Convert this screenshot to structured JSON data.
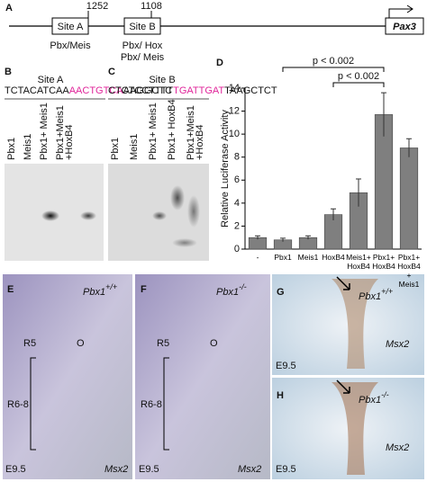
{
  "panel_a": {
    "label": "A",
    "gene": "Pax3",
    "sites": [
      {
        "name": "Site A",
        "position": 1252,
        "motif": [
          "Pbx/Meis"
        ]
      },
      {
        "name": "Site B",
        "position": 1108,
        "motif": [
          "Pbx/ Hox",
          "Pbx/ Meis"
        ]
      }
    ]
  },
  "panel_b": {
    "label": "B",
    "site": "Site A",
    "sequence": {
      "prefix": "TCTACATCAA",
      "site": "AACTGTCA",
      "suffix": "AAGGCTC"
    },
    "lanes": [
      [
        "Pbx1"
      ],
      [
        "Meis1"
      ],
      [
        "Pbx1+ Meis1"
      ],
      [
        "Pbx1+Meis1",
        "+HoxB4"
      ]
    ]
  },
  "panel_c": {
    "label": "C",
    "site": "Site B",
    "sequence": {
      "prefix": "CTCTCCTTTT",
      "site": "TGATTGAT",
      "suffix": "TAAGCTCT"
    },
    "lanes": [
      [
        "Pbx1"
      ],
      [
        "Meis1"
      ],
      [
        "Pbx1+ Meis1"
      ],
      [
        "Pbx1+ HoxB4"
      ],
      [
        "Pbx1+Meis1",
        "+HoxB4"
      ]
    ]
  },
  "chart_data": {
    "label": "D",
    "type": "bar",
    "y_label": "Relative Luciferase Activity",
    "categories": [
      "-",
      "Pbx1",
      "Meis1",
      "HoxB4",
      "Meis1+ HoxB4",
      "Pbx1+ HoxB4",
      "Pbx1+ HoxB4 + Meis1"
    ],
    "values": [
      1.0,
      0.8,
      1.0,
      3.0,
      4.9,
      11.7,
      8.8
    ],
    "errors": [
      0.15,
      0.15,
      0.15,
      0.5,
      1.2,
      1.9,
      0.8
    ],
    "color": "#7f7f7f",
    "ylim": [
      0,
      14
    ],
    "yticks": [
      0,
      2,
      4,
      6,
      8,
      10,
      12,
      14
    ],
    "annotations": [
      "p < 0.002",
      "p < 0.002"
    ]
  },
  "panel_e": {
    "label": "E",
    "gene": "Pbx1",
    "genotype": "+/+",
    "regions": [
      "R5",
      "O",
      "R6-8"
    ],
    "stage": "E9.5",
    "probe": "Msx2"
  },
  "panel_f": {
    "label": "F",
    "gene": "Pbx1",
    "genotype": "-/-",
    "regions": [
      "R5",
      "O",
      "R6-8"
    ],
    "stage": "E9.5",
    "probe": "Msx2"
  },
  "panel_g": {
    "label": "G",
    "gene": "Pbx1",
    "genotype": "+/+",
    "stage": "E9.5",
    "probe": "Msx2"
  },
  "panel_h": {
    "label": "H",
    "gene": "Pbx1",
    "genotype": "-/-",
    "stage": "E9.5",
    "probe": "Msx2"
  }
}
